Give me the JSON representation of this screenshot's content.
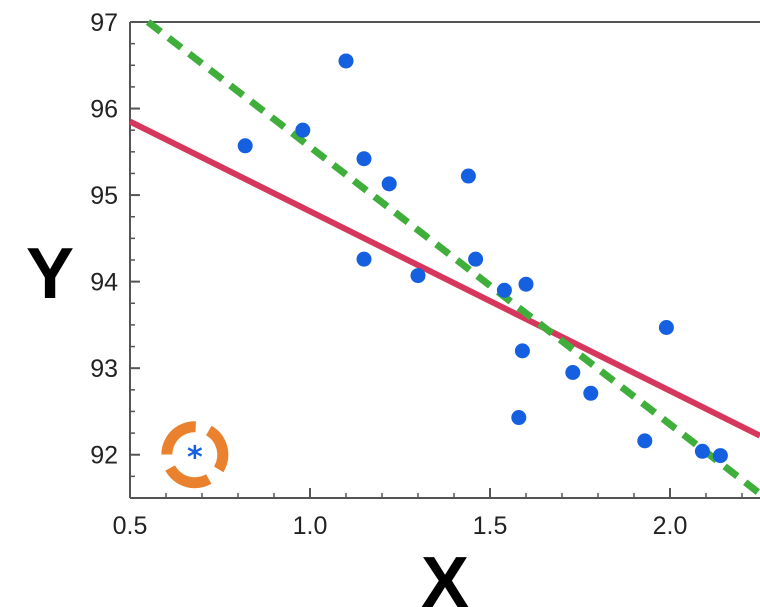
{
  "chart_data": {
    "type": "scatter",
    "title": "",
    "xlabel": "X",
    "ylabel": "Y",
    "xlim": [
      0.5,
      2.25
    ],
    "ylim": [
      91.5,
      97
    ],
    "xticks": [
      0.5,
      1.0,
      1.5,
      2.0
    ],
    "xtick_labels": [
      "0.5",
      "1.0",
      "1.5",
      "2.0"
    ],
    "yticks": [
      92,
      93,
      94,
      95,
      96,
      97
    ],
    "ytick_labels": [
      "92",
      "93",
      "94",
      "95",
      "96",
      "97"
    ],
    "grid": false,
    "series": [
      {
        "kind": "points",
        "color": "#1560e0",
        "x": [
          0.82,
          0.98,
          1.1,
          1.15,
          1.15,
          1.22,
          1.3,
          1.44,
          1.46,
          1.54,
          1.58,
          1.59,
          1.6,
          1.73,
          1.78,
          1.93,
          1.99,
          2.09,
          2.14
        ],
        "y": [
          95.57,
          95.75,
          96.55,
          95.42,
          94.26,
          95.13,
          94.07,
          95.22,
          94.26,
          93.9,
          92.43,
          93.2,
          93.97,
          92.95,
          92.71,
          92.16,
          93.47,
          92.04,
          91.99
        ]
      },
      {
        "kind": "line",
        "color": "#d6385d",
        "style": "solid",
        "x": [
          0.5,
          2.25
        ],
        "y": [
          95.85,
          92.22
        ]
      },
      {
        "kind": "line",
        "color": "#3fae3a",
        "style": "dashed",
        "x": [
          0.55,
          2.25
        ],
        "y": [
          97.0,
          91.55
        ]
      }
    ]
  },
  "overlay": {
    "icon": "orange-dashed-ring-with-blue-asterisk",
    "ring_color": "#e9812e",
    "glyph_color": "#1560e0",
    "glyph": "*",
    "x": 0.68,
    "y": 92.0
  }
}
